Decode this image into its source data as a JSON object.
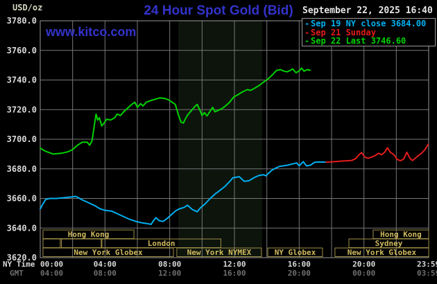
{
  "header": {
    "units": "USD/oz",
    "title": "24 Hour Spot Gold (Bid)",
    "datetime": "September 22, 2025 16:40",
    "watermark": "www.kitco.com"
  },
  "legend": [
    {
      "label": "Sep 19 NY close 3684.00",
      "color": "#00b0f0"
    },
    {
      "label": "Sep 21 Sunday",
      "color": "#e51c1c"
    },
    {
      "label": "Sep 22 Last 3746.60",
      "color": "#00d300"
    }
  ],
  "colors": {
    "background": "#000000",
    "grid": "#777777",
    "plot_border": "#999999",
    "axis_text": "#d8d8d8",
    "gmt_text": "#6f6f6f",
    "session_border": "#9f9048",
    "session_text": "#cdb95e",
    "nymex_band": "#0d140c",
    "title_blue": "#3333cc"
  },
  "chart_data": {
    "type": "line",
    "title": "24 Hour Spot Gold (Bid)",
    "ylabel": "USD/oz",
    "ylim": [
      3620,
      3780
    ],
    "ytick_interval": 20,
    "ytick_labels": [
      "3780.0",
      "3760.0",
      "3740.0",
      "3720.0",
      "3700.0",
      "3680.0",
      "3660.0",
      "3640.0",
      "3620.0"
    ],
    "xlim_hours": [
      0,
      24
    ],
    "x_gridline_hours": 2,
    "grid": true,
    "legend_position": "top-right",
    "x_axis_rows": [
      {
        "label": "NY Time",
        "ticks": [
          "00:00",
          "04:00",
          "08:00",
          "12:00",
          "16:00",
          "20:00",
          "23:59"
        ],
        "tick_hours": [
          0,
          4,
          8,
          12,
          16,
          20,
          23.983
        ],
        "color": "#d8d8d8"
      },
      {
        "label": "GMT",
        "ticks": [
          "04:00",
          "08:00",
          "12:00",
          "16:00",
          "20:00",
          "00:00",
          "03:59"
        ],
        "tick_hours": [
          0,
          4,
          8,
          12,
          16,
          20,
          23.983
        ],
        "color": "#6f6f6f"
      }
    ],
    "shaded_band_hours": [
      8.53,
      13.71
    ],
    "series": [
      {
        "name": "Sep 19 NY close 3684.00",
        "color": "#00b0f0",
        "points": [
          [
            0,
            3653
          ],
          [
            0.2,
            3657
          ],
          [
            0.35,
            3659.5
          ],
          [
            0.6,
            3660
          ],
          [
            1.0,
            3660
          ],
          [
            1.5,
            3660.5
          ],
          [
            1.9,
            3661
          ],
          [
            2.2,
            3661.4
          ],
          [
            2.6,
            3659
          ],
          [
            3.0,
            3657
          ],
          [
            3.4,
            3655
          ],
          [
            3.7,
            3653
          ],
          [
            4.0,
            3652
          ],
          [
            4.4,
            3651.5
          ],
          [
            4.7,
            3650
          ],
          [
            5.1,
            3648
          ],
          [
            5.5,
            3646
          ],
          [
            5.9,
            3644.5
          ],
          [
            6.3,
            3643.5
          ],
          [
            6.6,
            3643
          ],
          [
            6.85,
            3642.5
          ],
          [
            7.0,
            3645
          ],
          [
            7.15,
            3647
          ],
          [
            7.35,
            3645
          ],
          [
            7.6,
            3644.5
          ],
          [
            7.9,
            3647
          ],
          [
            8.2,
            3650
          ],
          [
            8.35,
            3651.5
          ],
          [
            8.6,
            3653
          ],
          [
            8.9,
            3654
          ],
          [
            9.1,
            3655.4
          ],
          [
            9.4,
            3652.5
          ],
          [
            9.7,
            3651
          ],
          [
            9.9,
            3653.7
          ],
          [
            10.2,
            3656.5
          ],
          [
            10.5,
            3660
          ],
          [
            10.8,
            3663
          ],
          [
            11.0,
            3664.6
          ],
          [
            11.4,
            3668
          ],
          [
            11.75,
            3672
          ],
          [
            11.9,
            3674
          ],
          [
            12.3,
            3674.7
          ],
          [
            12.6,
            3671.6
          ],
          [
            12.9,
            3672
          ],
          [
            13.2,
            3674
          ],
          [
            13.5,
            3675.5
          ],
          [
            13.8,
            3676
          ],
          [
            13.95,
            3675.3
          ],
          [
            14.1,
            3677
          ],
          [
            14.3,
            3679
          ],
          [
            14.55,
            3680.5
          ],
          [
            14.8,
            3681.7
          ],
          [
            15.0,
            3682
          ],
          [
            15.3,
            3682.5
          ],
          [
            15.65,
            3683.5
          ],
          [
            15.85,
            3684
          ],
          [
            16.0,
            3682
          ],
          [
            16.25,
            3684.9
          ],
          [
            16.45,
            3682
          ],
          [
            16.7,
            3682.5
          ],
          [
            16.95,
            3684.4
          ],
          [
            17.2,
            3684.6
          ],
          [
            17.66,
            3684.5
          ]
        ]
      },
      {
        "name": "Sep 21 Sunday",
        "color": "#e51c1c",
        "points": [
          [
            17.66,
            3684.5
          ],
          [
            18.1,
            3684.8
          ],
          [
            18.6,
            3685.2
          ],
          [
            19.0,
            3685.5
          ],
          [
            19.25,
            3685.7
          ],
          [
            19.5,
            3687
          ],
          [
            19.7,
            3689.5
          ],
          [
            19.85,
            3691
          ],
          [
            20.05,
            3688
          ],
          [
            20.25,
            3687.2
          ],
          [
            20.5,
            3688
          ],
          [
            20.7,
            3689
          ],
          [
            20.9,
            3690.5
          ],
          [
            21.1,
            3689.5
          ],
          [
            21.3,
            3691.5
          ],
          [
            21.45,
            3694.2
          ],
          [
            21.65,
            3691
          ],
          [
            21.85,
            3689.6
          ],
          [
            22.05,
            3686.4
          ],
          [
            22.25,
            3685.5
          ],
          [
            22.45,
            3686.5
          ],
          [
            22.65,
            3691.2
          ],
          [
            22.85,
            3687
          ],
          [
            23.0,
            3685.6
          ],
          [
            23.15,
            3687
          ],
          [
            23.35,
            3688.8
          ],
          [
            23.55,
            3690.5
          ],
          [
            23.75,
            3692.7
          ],
          [
            23.98,
            3696.6
          ]
        ]
      },
      {
        "name": "Sep 22 Last 3746.60",
        "color": "#00d300",
        "points": [
          [
            0,
            3694
          ],
          [
            0.3,
            3692
          ],
          [
            0.8,
            3690
          ],
          [
            1.3,
            3690.5
          ],
          [
            1.7,
            3691.5
          ],
          [
            2.0,
            3693
          ],
          [
            2.3,
            3696
          ],
          [
            2.6,
            3698
          ],
          [
            2.9,
            3698
          ],
          [
            3.05,
            3696
          ],
          [
            3.2,
            3699
          ],
          [
            3.35,
            3710
          ],
          [
            3.45,
            3717
          ],
          [
            3.55,
            3713
          ],
          [
            3.65,
            3714.5
          ],
          [
            3.8,
            3709
          ],
          [
            3.95,
            3711
          ],
          [
            4.1,
            3713.5
          ],
          [
            4.35,
            3713
          ],
          [
            4.6,
            3714.5
          ],
          [
            4.75,
            3717
          ],
          [
            4.95,
            3716
          ],
          [
            5.15,
            3718.5
          ],
          [
            5.4,
            3721
          ],
          [
            5.65,
            3723.5
          ],
          [
            5.85,
            3725
          ],
          [
            6.0,
            3721.5
          ],
          [
            6.2,
            3724
          ],
          [
            6.35,
            3722.5
          ],
          [
            6.55,
            3725
          ],
          [
            6.8,
            3726
          ],
          [
            7.1,
            3727
          ],
          [
            7.4,
            3728
          ],
          [
            7.7,
            3727.5
          ],
          [
            7.95,
            3726.5
          ],
          [
            8.15,
            3725
          ],
          [
            8.35,
            3723.5
          ],
          [
            8.55,
            3716
          ],
          [
            8.7,
            3711.5
          ],
          [
            8.85,
            3711
          ],
          [
            9.0,
            3714.5
          ],
          [
            9.15,
            3717
          ],
          [
            9.35,
            3719.5
          ],
          [
            9.55,
            3722
          ],
          [
            9.7,
            3723.5
          ],
          [
            9.85,
            3720
          ],
          [
            10.0,
            3716
          ],
          [
            10.15,
            3718
          ],
          [
            10.3,
            3715.7
          ],
          [
            10.5,
            3719
          ],
          [
            10.65,
            3721.5
          ],
          [
            10.8,
            3718.5
          ],
          [
            11.0,
            3719.5
          ],
          [
            11.2,
            3720.5
          ],
          [
            11.45,
            3722.5
          ],
          [
            11.7,
            3725
          ],
          [
            11.95,
            3728.5
          ],
          [
            12.2,
            3730
          ],
          [
            12.5,
            3732
          ],
          [
            12.8,
            3733.5
          ],
          [
            13.0,
            3733
          ],
          [
            13.25,
            3734.5
          ],
          [
            13.55,
            3736.5
          ],
          [
            13.85,
            3739
          ],
          [
            14.1,
            3741
          ],
          [
            14.35,
            3743.5
          ],
          [
            14.6,
            3746.5
          ],
          [
            14.85,
            3747
          ],
          [
            15.05,
            3746
          ],
          [
            15.25,
            3745.5
          ],
          [
            15.45,
            3746.5
          ],
          [
            15.6,
            3747.5
          ],
          [
            15.8,
            3744.9
          ],
          [
            16.0,
            3746.2
          ],
          [
            16.15,
            3748
          ],
          [
            16.3,
            3746
          ],
          [
            16.5,
            3747
          ],
          [
            16.67,
            3746.6
          ]
        ]
      }
    ],
    "market_sessions": [
      {
        "row": 0,
        "label": "Hong Kong",
        "start": 0.17,
        "end": 5.79
      },
      {
        "row": 0,
        "label": "Hong Kong",
        "start": 20.57,
        "end": 24
      },
      {
        "row": 1,
        "label": "",
        "start": 0.17,
        "end": 1.24
      },
      {
        "row": 1,
        "label": "",
        "start": 1.31,
        "end": 3.77
      },
      {
        "row": 1,
        "label": "London",
        "start": 3.81,
        "end": 11.16
      },
      {
        "row": 1,
        "label": "Sydney",
        "start": 19.07,
        "end": 24
      },
      {
        "row": 2,
        "label": "New York Globex",
        "start": 0.17,
        "end": 8.23
      },
      {
        "row": 2,
        "label": "New York NYMEX",
        "start": 8.44,
        "end": 13.67
      },
      {
        "row": 2,
        "label": "NY Globex",
        "start": 14.06,
        "end": 17.44
      },
      {
        "row": 2,
        "label": "New York Globex",
        "start": 18.21,
        "end": 24
      }
    ]
  }
}
